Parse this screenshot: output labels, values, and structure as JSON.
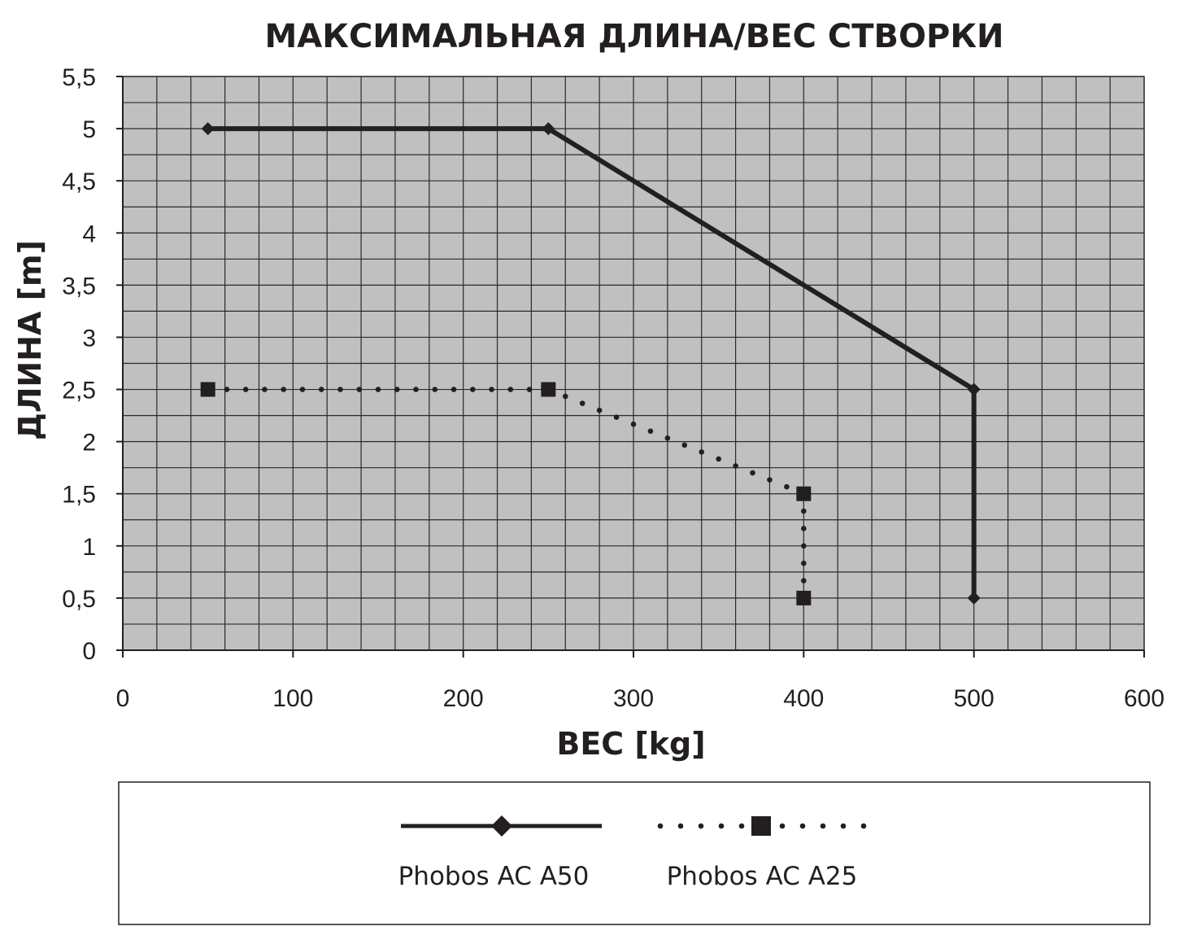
{
  "chart_data": {
    "type": "line",
    "title": "МАКСИМАЛЬНАЯ ДЛИНА/ВЕС СТВОРКИ",
    "xlabel": "ВЕС [kg]",
    "ylabel": "ДЛИНА [m]",
    "xlim": [
      0,
      600
    ],
    "ylim": [
      0,
      5.5
    ],
    "xticks": [
      "0",
      "100",
      "200",
      "300",
      "400",
      "500",
      "600"
    ],
    "yticks": [
      "0",
      "0,5",
      "1",
      "1,5",
      "2",
      "2,5",
      "3",
      "3,5",
      "4",
      "4,5",
      "5",
      "5,5"
    ],
    "grid": true,
    "plot_background": "#c0c0c0",
    "line_color": "#231f20",
    "legend_position": "bottom",
    "series": [
      {
        "name": "Phobos AC A50",
        "style": "solid",
        "marker": "diamond",
        "x": [
          50,
          250,
          500,
          500
        ],
        "y": [
          5,
          5,
          2.5,
          0.5
        ]
      },
      {
        "name": "Phobos AC A25",
        "style": "dotted",
        "marker": "square",
        "x": [
          50,
          250,
          400,
          400
        ],
        "y": [
          2.5,
          2.5,
          1.5,
          0.5
        ]
      }
    ]
  }
}
